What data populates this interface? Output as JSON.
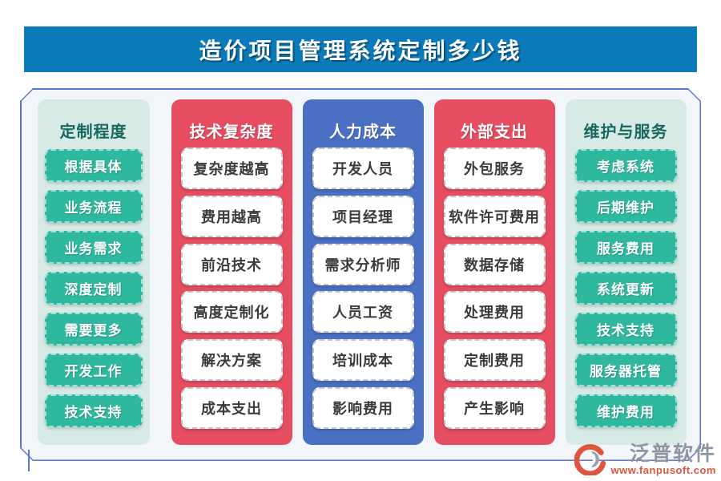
{
  "title": "造价项目管理系统定制多少钱",
  "columns": [
    {
      "header": "定制程度",
      "style": "mint",
      "items": [
        "根据具体",
        "业务流程",
        "业务需求",
        "深度定制",
        "需要更多",
        "开发工作",
        "技术支持"
      ]
    },
    {
      "header": "技术复杂度",
      "style": "red",
      "items": [
        "复杂度越高",
        "费用越高",
        "前沿技术",
        "高度定制化",
        "解决方案",
        "成本支出"
      ]
    },
    {
      "header": "人力成本",
      "style": "blue",
      "items": [
        "开发人员",
        "项目经理",
        "需求分析师",
        "人员工资",
        "培训成本",
        "影响费用"
      ]
    },
    {
      "header": "外部支出",
      "style": "red",
      "items": [
        "外包服务",
        "软件许可费用",
        "数据存储",
        "处理费用",
        "定制费用",
        "产生影响"
      ]
    },
    {
      "header": "维护与服务",
      "style": "mint",
      "items": [
        "考虑系统",
        "后期维护",
        "服务费用",
        "系统更新",
        "技术支持",
        "服务器托管",
        "维护费用"
      ]
    }
  ],
  "footer": {
    "brand": "泛普软件",
    "website": "www.fanpusoft.com",
    "logo_icon": "swirl-circle-icon"
  },
  "colors": {
    "title_bar_blue": "#0a7ab9",
    "panel_red": "#e64d61",
    "panel_blue": "#4a70c4",
    "panel_mint": "#d8eae6",
    "teal_button": "#2eb89e",
    "teal_heading_text": "#17685f",
    "board_border": "#5b74d6",
    "board_background": "#f2f5fa",
    "brand_gray": "#8f96a3",
    "brand_orange": "#e0543e"
  }
}
